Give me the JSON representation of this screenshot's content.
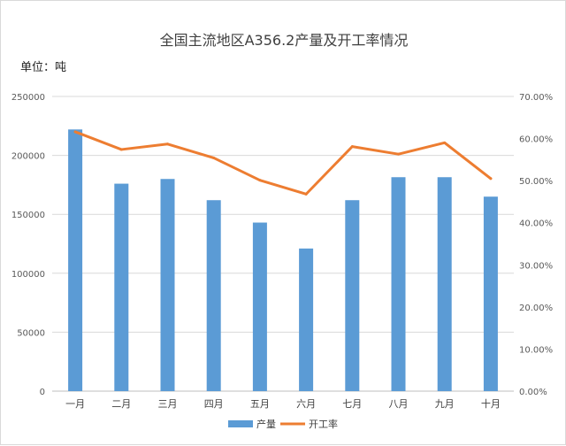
{
  "chart_data": {
    "type": "bar",
    "title": "全国主流地区A356.2产量及开工率情况",
    "unit_label": "单位：吨",
    "categories": [
      "一月",
      "二月",
      "三月",
      "四月",
      "五月",
      "六月",
      "七月",
      "八月",
      "九月",
      "十月"
    ],
    "series": [
      {
        "name": "产量",
        "type": "bar",
        "axis": "left",
        "color": "#5b9bd5",
        "values": [
          222000,
          176000,
          180000,
          162000,
          143000,
          121000,
          162000,
          181500,
          181500,
          165000
        ]
      },
      {
        "name": "开工率",
        "type": "line",
        "axis": "right",
        "color": "#ed7d31",
        "values": [
          0.616,
          0.574,
          0.587,
          0.554,
          0.501,
          0.468,
          0.581,
          0.563,
          0.59,
          0.505
        ]
      }
    ],
    "y_left": {
      "ylim": [
        0,
        250000
      ],
      "ticks": [
        0,
        50000,
        100000,
        150000,
        200000,
        250000
      ],
      "tick_labels": [
        "0",
        "50000",
        "100000",
        "150000",
        "200000",
        "250000"
      ]
    },
    "y_right": {
      "ylim": [
        0,
        0.7
      ],
      "ticks": [
        0,
        0.1,
        0.2,
        0.3,
        0.4,
        0.5,
        0.6,
        0.7
      ],
      "tick_labels": [
        "0.00%",
        "10.00%",
        "20.00%",
        "30.00%",
        "40.00%",
        "50.00%",
        "60.00%",
        "70.00%"
      ]
    },
    "grid": true,
    "legend_position": "bottom"
  }
}
